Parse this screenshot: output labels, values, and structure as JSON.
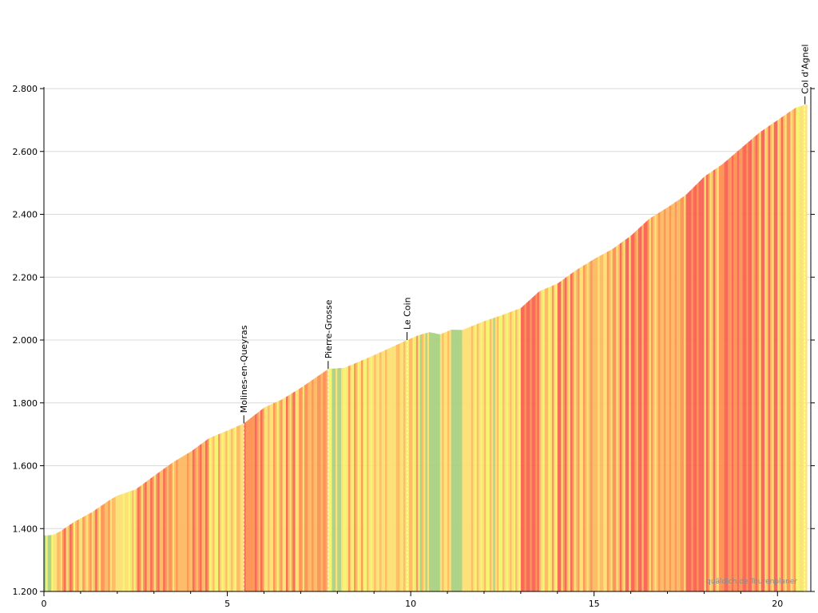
{
  "chart_data": {
    "type": "area",
    "xlabel": "",
    "ylabel": "",
    "xlim": [
      0,
      20.8
    ],
    "ylim": [
      1200,
      2800
    ],
    "x_ticks": [
      {
        "value": 0,
        "label": "0"
      },
      {
        "value": 5,
        "label": "5"
      },
      {
        "value": 10,
        "label": "10"
      },
      {
        "value": 15,
        "label": "15"
      },
      {
        "value": 20,
        "label": "20"
      }
    ],
    "y_ticks": [
      {
        "value": 1200,
        "label": "1.200"
      },
      {
        "value": 1400,
        "label": "1.400"
      },
      {
        "value": 1600,
        "label": "1.600"
      },
      {
        "value": 1800,
        "label": "1.800"
      },
      {
        "value": 2000,
        "label": "2.000"
      },
      {
        "value": 2200,
        "label": "2.200"
      },
      {
        "value": 2400,
        "label": "2.400"
      },
      {
        "value": 2600,
        "label": "2.600"
      },
      {
        "value": 2800,
        "label": "2.800"
      }
    ],
    "grid": true,
    "profile_points": [
      {
        "x": 0.0,
        "y": 1378
      },
      {
        "x": 0.25,
        "y": 1380
      },
      {
        "x": 0.45,
        "y": 1392
      },
      {
        "x": 0.8,
        "y": 1420
      },
      {
        "x": 1.3,
        "y": 1452
      },
      {
        "x": 1.8,
        "y": 1492
      },
      {
        "x": 2.0,
        "y": 1505
      },
      {
        "x": 2.5,
        "y": 1525
      },
      {
        "x": 3.0,
        "y": 1568
      },
      {
        "x": 3.5,
        "y": 1610
      },
      {
        "x": 4.0,
        "y": 1645
      },
      {
        "x": 4.5,
        "y": 1688
      },
      {
        "x": 5.0,
        "y": 1712
      },
      {
        "x": 5.45,
        "y": 1735
      },
      {
        "x": 6.0,
        "y": 1785
      },
      {
        "x": 6.5,
        "y": 1812
      },
      {
        "x": 7.0,
        "y": 1848
      },
      {
        "x": 7.5,
        "y": 1888
      },
      {
        "x": 7.75,
        "y": 1908
      },
      {
        "x": 8.2,
        "y": 1912
      },
      {
        "x": 9.0,
        "y": 1952
      },
      {
        "x": 9.9,
        "y": 2000
      },
      {
        "x": 10.2,
        "y": 2015
      },
      {
        "x": 10.5,
        "y": 2025
      },
      {
        "x": 10.8,
        "y": 2018
      },
      {
        "x": 11.1,
        "y": 2033
      },
      {
        "x": 11.4,
        "y": 2032
      },
      {
        "x": 12.0,
        "y": 2060
      },
      {
        "x": 12.5,
        "y": 2080
      },
      {
        "x": 13.0,
        "y": 2102
      },
      {
        "x": 13.5,
        "y": 2155
      },
      {
        "x": 14.0,
        "y": 2180
      },
      {
        "x": 14.5,
        "y": 2222
      },
      {
        "x": 15.0,
        "y": 2258
      },
      {
        "x": 15.5,
        "y": 2290
      },
      {
        "x": 16.0,
        "y": 2332
      },
      {
        "x": 16.5,
        "y": 2386
      },
      {
        "x": 17.0,
        "y": 2422
      },
      {
        "x": 17.5,
        "y": 2462
      },
      {
        "x": 18.0,
        "y": 2520
      },
      {
        "x": 18.5,
        "y": 2560
      },
      {
        "x": 19.0,
        "y": 2610
      },
      {
        "x": 19.5,
        "y": 2660
      },
      {
        "x": 20.0,
        "y": 2700
      },
      {
        "x": 20.5,
        "y": 2740
      },
      {
        "x": 20.8,
        "y": 2750
      }
    ],
    "waypoints": [
      {
        "name": "Molines-en-Queyras",
        "x": 5.45,
        "y": 1735
      },
      {
        "name": "Pierre-Grosse",
        "x": 7.75,
        "y": 1908
      },
      {
        "name": "Le Coin",
        "x": 9.9,
        "y": 2000
      },
      {
        "name": "Col d'Agnel",
        "x": 20.75,
        "y": 2750
      }
    ],
    "gradient_colors": {
      "flat": "#a8d080",
      "gentle": "#f4f46a",
      "moderate": "#fde070",
      "steep": "#fdb860",
      "very_steep": "#fd9050",
      "extreme": "#f86050"
    },
    "watermark": "quäldich.de Tourenplaner"
  }
}
